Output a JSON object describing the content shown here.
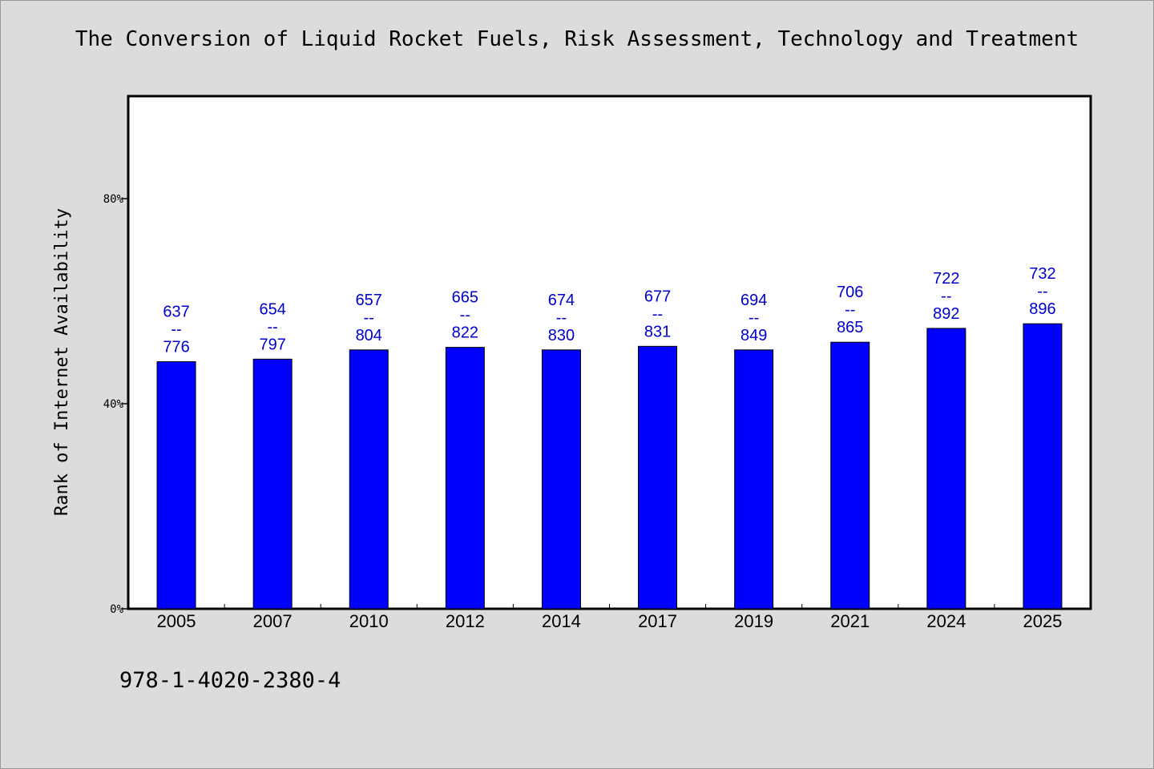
{
  "chart_data": {
    "type": "bar",
    "title": "The Conversion of Liquid Rocket Fuels, Risk Assessment, Technology and Treatment",
    "xlabel": "",
    "ylabel": "Rank of Internet Availability",
    "categories": [
      "2005",
      "2007",
      "2010",
      "2012",
      "2014",
      "2017",
      "2019",
      "2021",
      "2024",
      "2025"
    ],
    "values": [
      48.2,
      48.7,
      50.5,
      51.0,
      50.5,
      51.2,
      50.5,
      52.0,
      54.7,
      55.6
    ],
    "bar_labels": [
      [
        "637",
        "--",
        "776"
      ],
      [
        "654",
        "--",
        "797"
      ],
      [
        "657",
        "--",
        "804"
      ],
      [
        "665",
        "--",
        "822"
      ],
      [
        "674",
        "--",
        "830"
      ],
      [
        "677",
        "--",
        "831"
      ],
      [
        "694",
        "--",
        "849"
      ],
      [
        "706",
        "--",
        "865"
      ],
      [
        "722",
        "--",
        "892"
      ],
      [
        "732",
        "--",
        "896"
      ]
    ],
    "ylim": [
      0,
      100
    ],
    "yticks": [
      0,
      40,
      80
    ],
    "ytick_labels": [
      "0%",
      "40%",
      "80%"
    ],
    "grid": false,
    "legend": "none",
    "bar_color": "#0000ff",
    "label_color": "#0000cc",
    "plot_background": "#ffffff",
    "page_background": "#dcdcdc"
  },
  "footer_text": "978-1-4020-2380-4"
}
